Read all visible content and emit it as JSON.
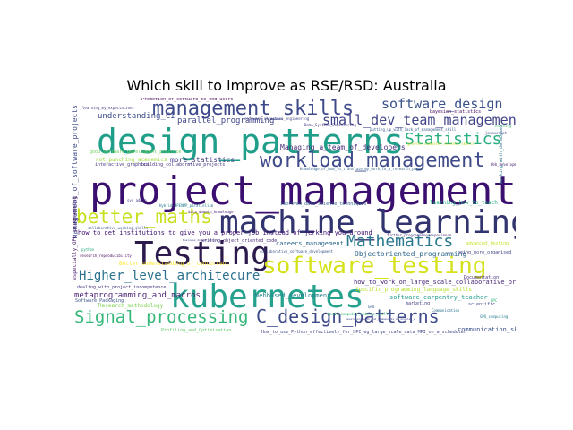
{
  "title": "Which skill to improve as RSE/RSD: Australia",
  "words": [
    {
      "text": "project_management",
      "color": "#3b0f70"
    },
    {
      "text": "machine_learning",
      "color": "#31346f"
    },
    {
      "text": "design_patterns",
      "color": "#1f9e89"
    },
    {
      "text": "kubernetes",
      "color": "#25a18e"
    },
    {
      "text": "Testing",
      "color": "#2b1a4b"
    },
    {
      "text": "software_testing",
      "color": "#d5e21a"
    },
    {
      "text": "management_skills",
      "color": "#3e4989"
    },
    {
      "text": "workload_management",
      "color": "#3f4b8a"
    },
    {
      "text": "better_maths",
      "color": "#c8e020"
    },
    {
      "text": "Signal_processing",
      "color": "#35b779"
    },
    {
      "text": "C_design_patterns",
      "color": "#3e4a89"
    },
    {
      "text": "Mathematics",
      "color": "#2a788e"
    },
    {
      "text": "Statistics",
      "color": "#29af7f"
    },
    {
      "text": "small_dev_team_management",
      "color": "#414487"
    },
    {
      "text": "software_design",
      "color": "#3b528b"
    },
    {
      "text": "Higher_level_architecure",
      "color": "#2c728e"
    },
    {
      "text": "metaprogramming_and_macros",
      "color": "#481f70"
    },
    {
      "text": "parallel_programming",
      "color": "#404688"
    },
    {
      "text": "understanding_CI",
      "color": "#3d4e8a"
    },
    {
      "text": "more_statistics",
      "color": "#433e85"
    },
    {
      "text": "Managing_a_team_of_developers",
      "color": "#472c7a"
    },
    {
      "text": "how_to_get_institutions_to_give_you_a_proper_job_instead_of_jerking_you_around",
      "color": "#3b0f70"
    },
    {
      "text": "Objectoriented_programming",
      "color": "#31688e"
    },
    {
      "text": "careers_management",
      "color": "#30698e"
    },
    {
      "text": "Webbased_development",
      "color": "#26828e"
    },
    {
      "text": "how_to_work_on_large_scale_collaborative_projects",
      "color": "#482878"
    },
    {
      "text": "software_carpentry_teacher",
      "color": "#1f9a8a"
    },
    {
      "text": "Specific_programming_language_skills",
      "color": "#b5de2b"
    },
    {
      "text": "Better_understanding_of_concurrent",
      "color": "#fde725"
    },
    {
      "text": "Research_methodology",
      "color": "#7ad151"
    },
    {
      "text": "not_punching_academics",
      "color": "#9fda3a"
    },
    {
      "text": "interactive_graphics",
      "color": "#443983"
    },
    {
      "text": "building_collaborative_projects",
      "color": "#46337f"
    },
    {
      "text": "Documentation",
      "color": "#472d7b"
    },
    {
      "text": "communication_skills",
      "color": "#3b528b"
    },
    {
      "text": "How_to_use_Python_effectively_for_HPC_eg_large_scale_data_MPI_on_a_scheduler",
      "color": "#414487"
    },
    {
      "text": "Profiling_and_Optimisation",
      "color": "#5ec962"
    },
    {
      "text": "Software_Packaging",
      "color": "#3a538b"
    },
    {
      "text": "dealing_with_project_incompetence",
      "color": "#46327e"
    },
    {
      "text": "improved_data_science_techniques",
      "color": "#33638d"
    },
    {
      "text": "writing_object_oriented_code",
      "color": "#472a7a"
    },
    {
      "text": "Promotion_of_software_to_end_users",
      "color": "#440154"
    },
    {
      "text": "bayesian_statistics",
      "color": "#46085c"
    },
    {
      "text": "Data_Systems_Engineering",
      "color": "#453781"
    },
    {
      "text": "software_structure_engineering",
      "color": "#404588"
    },
    {
      "text": "putting_up_with_lack_of_management_skill",
      "color": "#38588c"
    },
    {
      "text": "good_software_development_practice",
      "color": "#6ece58"
    },
    {
      "text": "learning_how_to_teach",
      "color": "#22a884"
    },
    {
      "text": "Web_Development",
      "color": "#482475"
    },
    {
      "text": "javascript",
      "color": "#3d4d8a"
    },
    {
      "text": "teaching",
      "color": "#4ac16d"
    },
    {
      "text": "advanced_testing",
      "color": "#c2df23"
    },
    {
      "text": "being_more_organised",
      "color": "#414287"
    },
    {
      "text": "further_programming_experience",
      "color": "#46307e"
    },
    {
      "text": "scientific",
      "color": "#3e4c8a"
    },
    {
      "text": "GPU",
      "color": "#345e8d"
    },
    {
      "text": "marketing",
      "color": "#424086"
    },
    {
      "text": "Communication",
      "color": "#2d708e"
    },
    {
      "text": "GPU_computing",
      "color": "#277f8e"
    },
    {
      "text": "HPC",
      "color": "#2db27d"
    },
    {
      "text": "python",
      "color": "#25ab82"
    },
    {
      "text": "research_reproducibility",
      "color": "#46085c"
    },
    {
      "text": "sys_admin",
      "color": "#453581"
    },
    {
      "text": "Hybrid_OPENMP_parallelism",
      "color": "#277e8e"
    },
    {
      "text": "data_domain_knowledge",
      "color": "#482173"
    },
    {
      "text": "collaborative_working_skills",
      "color": "#3b518b"
    },
    {
      "text": "Business_domain_skills",
      "color": "#433d84"
    },
    {
      "text": "collaborative_software_development",
      "color": "#3a548c"
    },
    {
      "text": "basic_computer_science_skills",
      "color": "#35b779"
    },
    {
      "text": "general_computer_science_skills",
      "color": "#b8de29"
    },
    {
      "text": "learning_my_expectations",
      "color": "#443a83"
    },
    {
      "text": "management_of_software_projects",
      "color": "#3e4a89"
    },
    {
      "text": "especially_GPU_programming",
      "color": "#48186a"
    },
    {
      "text": "working_with_databases",
      "color": "#2c718e"
    },
    {
      "text": "Knowledge_of_how_to_translate_my_work_to_a_research_paper",
      "color": "#33638d"
    },
    {
      "text": "Developing_with_and_frameworks_eg_Angular_2",
      "color": "#414487"
    }
  ]
}
